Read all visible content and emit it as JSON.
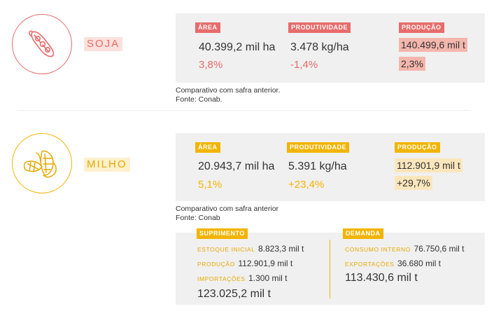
{
  "colors": {
    "soja_accent": "#e86b6b",
    "soja_highlight": "#f4b6ad",
    "milho_accent": "#f2b400",
    "milho_highlight": "#fbe6bc",
    "panel_bg": "#f0f0f0"
  },
  "soja": {
    "icon": "soybean-pod-icon",
    "name": "SOJA",
    "area": {
      "label": "ÁREA",
      "value": "40.399,2 mil ha",
      "change": "3,8%"
    },
    "produtividade": {
      "label": "PRODUTIVIDADE",
      "value": "3.478 kg/ha",
      "change": "-1,4%"
    },
    "producao": {
      "label": "PRODUÇÃO",
      "value": "140.499,6 mil t",
      "change": "2,3%"
    },
    "note_line1": "Comparativo com safra anterior.",
    "note_line2": "Fonte: Conab."
  },
  "milho": {
    "icon": "corn-cob-icon",
    "name": "MILHO",
    "area": {
      "label": "ÁREA",
      "value": "20.943,7 mil ha",
      "change": "5,1%"
    },
    "produtividade": {
      "label": "PRODUTIVIDADE",
      "value": "5.391 kg/ha",
      "change": "+23,4%"
    },
    "producao": {
      "label": "PRODUÇÃO",
      "value": "112.901,9 mil t",
      "change": "+29,7%"
    },
    "note_line1": "Comparativo com safra anterior",
    "note_line2": "Fonte: Conab",
    "suprimento": {
      "label": "SUPRIMENTO",
      "estoque_key": "ESTOQUE INICIAL",
      "estoque_val": "8.823,3 mil t",
      "producao_key": "PRODUÇÃO",
      "producao_val": "112.901,9 mil t",
      "importacoes_key": "IMPORTAÇÕES",
      "importacoes_val": "1.300 mil t",
      "total": "123.025,2 mil t"
    },
    "demanda": {
      "label": "DEMANDA",
      "consumo_key": "CONSUMO INTERNO",
      "consumo_val": "76.750,6 mil t",
      "exportacoes_key": "EXPORTAÇÕES",
      "exportacoes_val": "36.680 mil t",
      "total": "113.430,6 mil t"
    }
  }
}
